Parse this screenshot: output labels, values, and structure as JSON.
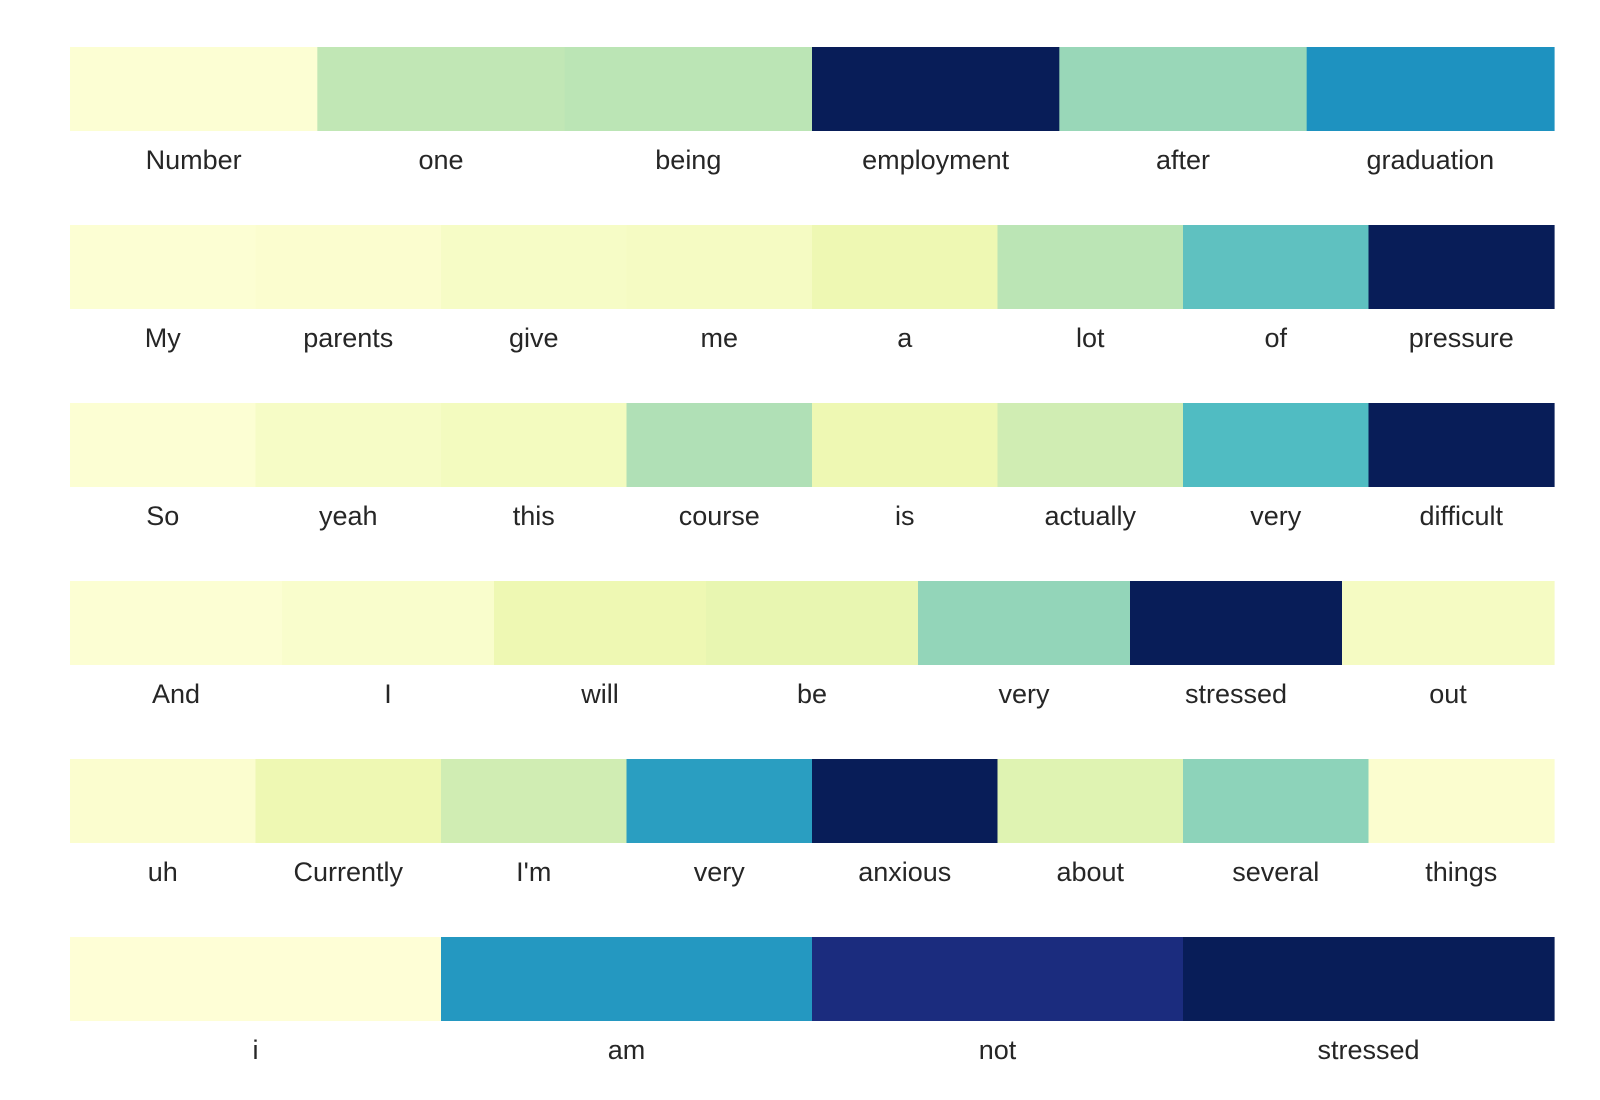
{
  "chart_data": {
    "type": "heatmap",
    "colormap": "YlGnBu",
    "value_range": [
      0,
      1
    ],
    "rows": [
      {
        "tokens": [
          "Number",
          "one",
          "being",
          "employment",
          "after",
          "graduation"
        ],
        "values": [
          0.02,
          0.26,
          0.27,
          1.0,
          0.33,
          0.62
        ]
      },
      {
        "tokens": [
          "My",
          "parents",
          "give",
          "me",
          "a",
          "lot",
          "of",
          "pressure"
        ],
        "values": [
          0.02,
          0.03,
          0.06,
          0.07,
          0.12,
          0.27,
          0.44,
          1.0
        ]
      },
      {
        "tokens": [
          "So",
          "yeah",
          "this",
          "course",
          "is",
          "actually",
          "very",
          "difficult"
        ],
        "values": [
          0.02,
          0.06,
          0.08,
          0.29,
          0.12,
          0.22,
          0.47,
          1.0
        ]
      },
      {
        "tokens": [
          "And",
          "I",
          "will",
          "be",
          "very",
          "stressed",
          "out"
        ],
        "values": [
          0.02,
          0.04,
          0.12,
          0.14,
          0.34,
          1.0,
          0.07
        ]
      },
      {
        "tokens": [
          "uh",
          "Currently",
          "I'm",
          "very",
          "anxious",
          "about",
          "several",
          "things"
        ],
        "values": [
          0.03,
          0.12,
          0.22,
          0.58,
          1.0,
          0.17,
          0.35,
          0.03
        ]
      },
      {
        "tokens": [
          "i",
          "am",
          "not",
          "stressed"
        ],
        "values": [
          0.01,
          0.6,
          0.92,
          1.0
        ]
      }
    ]
  }
}
